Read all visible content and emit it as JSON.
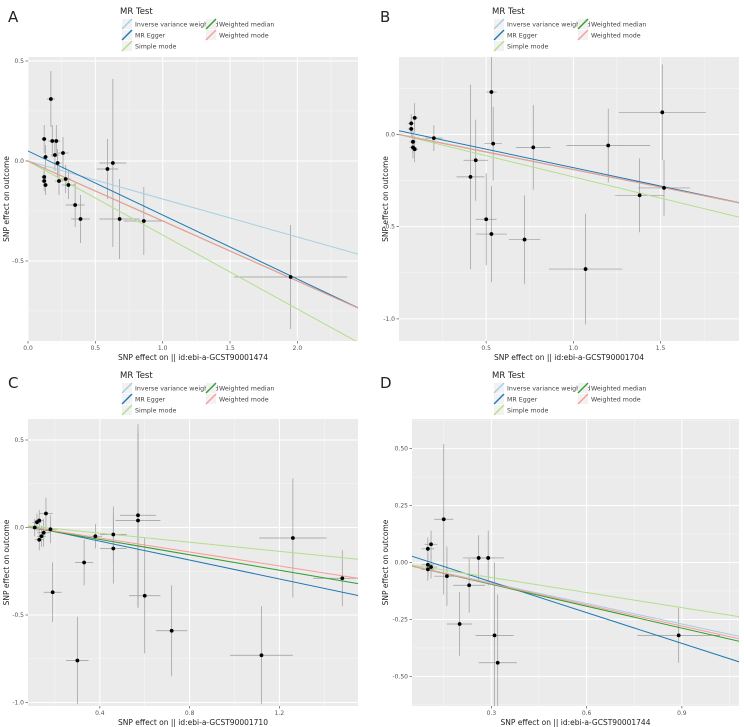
{
  "figure": {
    "colors": {
      "panel_bg": "#ebebeb",
      "grid": "#ffffff",
      "point": "#000000",
      "errorbar": "#9a9a9a",
      "ivw": "#a6cee3",
      "egger": "#1f78b4",
      "simple": "#b2df8a",
      "wmedian": "#33a02c",
      "wmode": "#fb9a99"
    },
    "legend": {
      "title": "MR Test",
      "items": [
        {
          "key": "ivw",
          "label": "Inverse variance weighted"
        },
        {
          "key": "egger",
          "label": "MR Egger"
        },
        {
          "key": "simple",
          "label": "Simple mode"
        },
        {
          "key": "wmedian",
          "label": "Weighted median"
        },
        {
          "key": "wmode",
          "label": "Weighted mode"
        }
      ]
    }
  },
  "chart_data": [
    {
      "type": "scatter",
      "panel_label": "A",
      "xlabel": "SNP effect on  || id:ebi-a-GCST90001474",
      "ylabel": "SNP effect on outcome",
      "xlim": [
        0,
        2.45
      ],
      "ylim": [
        -0.9,
        0.52
      ],
      "x_ticks": [
        0,
        0.5,
        1,
        1.5,
        2
      ],
      "x_tick_labels": [
        "0.0",
        "0.5",
        "1.0",
        "1.5",
        "2.0"
      ],
      "y_ticks": [
        -0.5,
        0,
        0.5
      ],
      "y_tick_labels": [
        "-0.5",
        "0.0",
        "0.5"
      ],
      "points": [
        {
          "x": 0.12,
          "y": 0.11,
          "xe": 0.02,
          "ye": 0.07
        },
        {
          "x": 0.13,
          "y": 0.02,
          "xe": 0.02,
          "ye": 0.06
        },
        {
          "x": 0.12,
          "y": -0.08,
          "xe": 0.02,
          "ye": 0.05
        },
        {
          "x": 0.12,
          "y": -0.1,
          "xe": 0.02,
          "ye": 0.05
        },
        {
          "x": 0.13,
          "y": -0.12,
          "xe": 0.02,
          "ye": 0.05
        },
        {
          "x": 0.17,
          "y": 0.31,
          "xe": 0.03,
          "ye": 0.14
        },
        {
          "x": 0.18,
          "y": 0.1,
          "xe": 0.03,
          "ye": 0.08
        },
        {
          "x": 0.2,
          "y": 0.03,
          "xe": 0.03,
          "ye": 0.08
        },
        {
          "x": 0.21,
          "y": 0.1,
          "xe": 0.03,
          "ye": 0.08
        },
        {
          "x": 0.22,
          "y": -0.01,
          "xe": 0.03,
          "ye": 0.07
        },
        {
          "x": 0.23,
          "y": -0.1,
          "xe": 0.03,
          "ye": 0.07
        },
        {
          "x": 0.26,
          "y": 0.04,
          "xe": 0.04,
          "ye": 0.08
        },
        {
          "x": 0.28,
          "y": -0.09,
          "xe": 0.04,
          "ye": 0.07
        },
        {
          "x": 0.3,
          "y": -0.12,
          "xe": 0.05,
          "ye": 0.07
        },
        {
          "x": 0.35,
          "y": -0.22,
          "xe": 0.07,
          "ye": 0.11
        },
        {
          "x": 0.39,
          "y": -0.29,
          "xe": 0.07,
          "ye": 0.12
        },
        {
          "x": 0.59,
          "y": -0.04,
          "xe": 0.08,
          "ye": 0.15
        },
        {
          "x": 0.63,
          "y": -0.01,
          "xe": 0.1,
          "ye": 0.42
        },
        {
          "x": 0.68,
          "y": -0.29,
          "xe": 0.15,
          "ye": 0.2
        },
        {
          "x": 0.86,
          "y": -0.3,
          "xe": 0.15,
          "ye": 0.17
        },
        {
          "x": 1.95,
          "y": -0.58,
          "xe": 0.42,
          "ye": 0.26
        }
      ],
      "lines": [
        {
          "key": "ivw",
          "intercept": 0,
          "slope": -0.19
        },
        {
          "key": "egger",
          "intercept": 0.05,
          "slope": -0.32
        },
        {
          "key": "simple",
          "intercept": 0,
          "slope": -0.37
        },
        {
          "key": "wmedian",
          "intercept": 0,
          "slope": -0.3
        },
        {
          "key": "wmode",
          "intercept": 0,
          "slope": -0.3
        }
      ]
    },
    {
      "type": "scatter",
      "panel_label": "B",
      "xlabel": "SNP effect on  || id:ebi-a-GCST90001704",
      "ylabel": "SNP effect on outcome",
      "xlim": [
        0,
        1.95
      ],
      "ylim": [
        -1.12,
        0.42
      ],
      "x_ticks": [
        0.5,
        1,
        1.5
      ],
      "x_tick_labels": [
        "0.5",
        "1.0",
        "1.5"
      ],
      "y_ticks": [
        -1,
        -0.5,
        0
      ],
      "y_tick_labels": [
        "-1.0",
        "-0.5",
        "0.0"
      ],
      "points": [
        {
          "x": 0.07,
          "y": 0.06,
          "xe": 0.02,
          "ye": 0.05
        },
        {
          "x": 0.07,
          "y": 0.03,
          "xe": 0.02,
          "ye": 0.05
        },
        {
          "x": 0.09,
          "y": 0.09,
          "xe": 0.02,
          "ye": 0.08
        },
        {
          "x": 0.08,
          "y": -0.04,
          "xe": 0.02,
          "ye": 0.06
        },
        {
          "x": 0.08,
          "y": -0.07,
          "xe": 0.02,
          "ye": 0.06
        },
        {
          "x": 0.09,
          "y": -0.08,
          "xe": 0.02,
          "ye": 0.07
        },
        {
          "x": 0.2,
          "y": -0.02,
          "xe": 0.05,
          "ye": 0.07
        },
        {
          "x": 0.41,
          "y": -0.23,
          "xe": 0.08,
          "ye": 0.5
        },
        {
          "x": 0.44,
          "y": -0.14,
          "xe": 0.07,
          "ye": 0.22
        },
        {
          "x": 0.5,
          "y": -0.46,
          "xe": 0.06,
          "ye": 0.25
        },
        {
          "x": 0.53,
          "y": 0.23,
          "xe": 0.03,
          "ye": 0.27
        },
        {
          "x": 0.54,
          "y": -0.05,
          "xe": 0.05,
          "ye": 0.2
        },
        {
          "x": 0.53,
          "y": -0.54,
          "xe": 0.09,
          "ye": 0.26
        },
        {
          "x": 0.72,
          "y": -0.57,
          "xe": 0.09,
          "ye": 0.24
        },
        {
          "x": 0.77,
          "y": -0.07,
          "xe": 0.1,
          "ye": 0.23
        },
        {
          "x": 1.07,
          "y": -0.73,
          "xe": 0.21,
          "ye": 0.3
        },
        {
          "x": 1.2,
          "y": -0.06,
          "xe": 0.24,
          "ye": 0.2
        },
        {
          "x": 1.38,
          "y": -0.33,
          "xe": 0.14,
          "ye": 0.2
        },
        {
          "x": 1.51,
          "y": 0.12,
          "xe": 0.25,
          "ye": 0.26
        },
        {
          "x": 1.52,
          "y": -0.29,
          "xe": 0.15,
          "ye": 0.15
        }
      ],
      "lines": [
        {
          "key": "ivw",
          "intercept": 0,
          "slope": -0.19
        },
        {
          "key": "egger",
          "intercept": 0.02,
          "slope": -0.2
        },
        {
          "key": "simple",
          "intercept": 0,
          "slope": -0.23
        },
        {
          "key": "wmedian",
          "intercept": 0,
          "slope": -0.19
        },
        {
          "key": "wmode",
          "intercept": 0,
          "slope": -0.19
        }
      ]
    },
    {
      "type": "scatter",
      "panel_label": "C",
      "xlabel": "SNP effect on  || id:ebi-a-GCST90001710",
      "ylabel": "SNP effect on outcome",
      "xlim": [
        0.08,
        1.55
      ],
      "ylim": [
        -1.02,
        0.62
      ],
      "x_ticks": [
        0.4,
        0.8,
        1.2
      ],
      "x_tick_labels": [
        "0.4",
        "0.8",
        "1.2"
      ],
      "y_ticks": [
        -1,
        -0.5,
        0,
        0.5
      ],
      "y_tick_labels": [
        "-1.0",
        "-0.5",
        "0.0",
        "0.5"
      ],
      "points": [
        {
          "x": 0.11,
          "y": 0.0,
          "xe": 0.02,
          "ye": 0.05
        },
        {
          "x": 0.12,
          "y": 0.03,
          "xe": 0.02,
          "ye": 0.05
        },
        {
          "x": 0.13,
          "y": 0.04,
          "xe": 0.02,
          "ye": 0.06
        },
        {
          "x": 0.13,
          "y": -0.07,
          "xe": 0.02,
          "ye": 0.06
        },
        {
          "x": 0.14,
          "y": -0.05,
          "xe": 0.02,
          "ye": 0.06
        },
        {
          "x": 0.15,
          "y": -0.03,
          "xe": 0.03,
          "ye": 0.08
        },
        {
          "x": 0.16,
          "y": 0.08,
          "xe": 0.03,
          "ye": 0.09
        },
        {
          "x": 0.18,
          "y": -0.01,
          "xe": 0.03,
          "ye": 0.08
        },
        {
          "x": 0.19,
          "y": -0.37,
          "xe": 0.04,
          "ye": 0.17
        },
        {
          "x": 0.3,
          "y": -0.76,
          "xe": 0.05,
          "ye": 0.25
        },
        {
          "x": 0.33,
          "y": -0.2,
          "xe": 0.04,
          "ye": 0.13
        },
        {
          "x": 0.38,
          "y": -0.05,
          "xe": 0.03,
          "ye": 0.07
        },
        {
          "x": 0.46,
          "y": -0.04,
          "xe": 0.06,
          "ye": 0.16
        },
        {
          "x": 0.46,
          "y": -0.12,
          "xe": 0.06,
          "ye": 0.2
        },
        {
          "x": 0.57,
          "y": 0.07,
          "xe": 0.08,
          "ye": 0.52
        },
        {
          "x": 0.57,
          "y": 0.04,
          "xe": 0.1,
          "ye": 0.5
        },
        {
          "x": 0.6,
          "y": -0.39,
          "xe": 0.07,
          "ye": 0.33
        },
        {
          "x": 0.72,
          "y": -0.59,
          "xe": 0.07,
          "ye": 0.26
        },
        {
          "x": 1.12,
          "y": -0.73,
          "xe": 0.14,
          "ye": 0.28
        },
        {
          "x": 1.26,
          "y": -0.06,
          "xe": 0.15,
          "ye": 0.34
        },
        {
          "x": 1.48,
          "y": -0.29,
          "xe": 0.13,
          "ye": 0.16
        }
      ],
      "lines": [
        {
          "key": "ivw",
          "intercept": 0.02,
          "slope": -0.22
        },
        {
          "key": "egger",
          "intercept": 0.03,
          "slope": -0.27
        },
        {
          "key": "simple",
          "intercept": 0.02,
          "slope": -0.13
        },
        {
          "key": "wmedian",
          "intercept": 0.02,
          "slope": -0.22
        },
        {
          "key": "wmode",
          "intercept": 0.02,
          "slope": -0.2
        }
      ]
    },
    {
      "type": "scatter",
      "panel_label": "D",
      "xlabel": "SNP effect on  || id:ebi-a-GCST90001744",
      "ylabel": "SNP effect on outcome",
      "xlim": [
        0.05,
        1.08
      ],
      "ylim": [
        -0.63,
        0.63
      ],
      "x_ticks": [
        0.3,
        0.6,
        0.9
      ],
      "x_tick_labels": [
        "0.3",
        "0.6",
        "0.9"
      ],
      "y_ticks": [
        -0.5,
        -0.25,
        0,
        0.25,
        0.5
      ],
      "y_tick_labels": [
        "-0.50",
        "-0.25",
        "0.00",
        "0.25",
        "0.50"
      ],
      "points": [
        {
          "x": 0.1,
          "y": 0.06,
          "xe": 0.02,
          "ye": 0.05
        },
        {
          "x": 0.11,
          "y": 0.08,
          "xe": 0.02,
          "ye": 0.06
        },
        {
          "x": 0.1,
          "y": -0.01,
          "xe": 0.02,
          "ye": 0.05
        },
        {
          "x": 0.1,
          "y": -0.03,
          "xe": 0.02,
          "ye": 0.05
        },
        {
          "x": 0.11,
          "y": -0.02,
          "xe": 0.02,
          "ye": 0.05
        },
        {
          "x": 0.15,
          "y": 0.19,
          "xe": 0.03,
          "ye": 0.33
        },
        {
          "x": 0.16,
          "y": -0.06,
          "xe": 0.04,
          "ye": 0.13
        },
        {
          "x": 0.2,
          "y": -0.27,
          "xe": 0.04,
          "ye": 0.14
        },
        {
          "x": 0.23,
          "y": -0.1,
          "xe": 0.05,
          "ye": 0.12
        },
        {
          "x": 0.26,
          "y": 0.02,
          "xe": 0.05,
          "ye": 0.1
        },
        {
          "x": 0.29,
          "y": 0.02,
          "xe": 0.05,
          "ye": 0.12
        },
        {
          "x": 0.31,
          "y": -0.32,
          "xe": 0.06,
          "ye": 0.32
        },
        {
          "x": 0.32,
          "y": -0.44,
          "xe": 0.06,
          "ye": 0.3
        },
        {
          "x": 0.89,
          "y": -0.32,
          "xe": 0.13,
          "ye": 0.12
        }
      ],
      "lines": [
        {
          "key": "ivw",
          "intercept": 0,
          "slope": -0.3
        },
        {
          "key": "egger",
          "intercept": 0.05,
          "slope": -0.45
        },
        {
          "key": "simple",
          "intercept": 0,
          "slope": -0.22
        },
        {
          "key": "wmedian",
          "intercept": 0,
          "slope": -0.32
        },
        {
          "key": "wmode",
          "intercept": 0,
          "slope": -0.31
        }
      ]
    }
  ]
}
